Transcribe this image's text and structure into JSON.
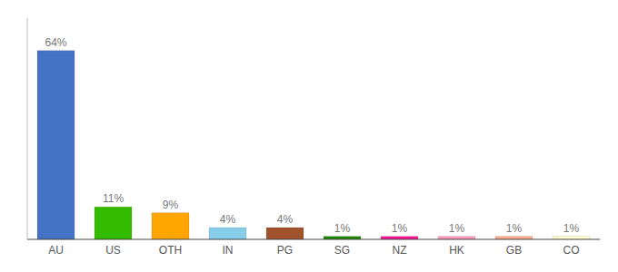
{
  "chart_data": {
    "type": "bar",
    "categories": [
      "AU",
      "US",
      "OTH",
      "IN",
      "PG",
      "SG",
      "NZ",
      "HK",
      "GB",
      "CO"
    ],
    "values": [
      64,
      11,
      9,
      4,
      4,
      1,
      1,
      1,
      1,
      1
    ],
    "value_labels": [
      "64%",
      "11%",
      "9%",
      "4%",
      "4%",
      "1%",
      "1%",
      "1%",
      "1%",
      "1%"
    ],
    "data_labels": true,
    "colors": [
      "#4472C4",
      "#33BB00",
      "#FFA500",
      "#87CEEB",
      "#A0522D",
      "#1E8800",
      "#FF1493",
      "#FF99BB",
      "#FFAA88",
      "#FFFFCC"
    ],
    "ylim": [
      0,
      75
    ],
    "tick_labels": "x"
  }
}
